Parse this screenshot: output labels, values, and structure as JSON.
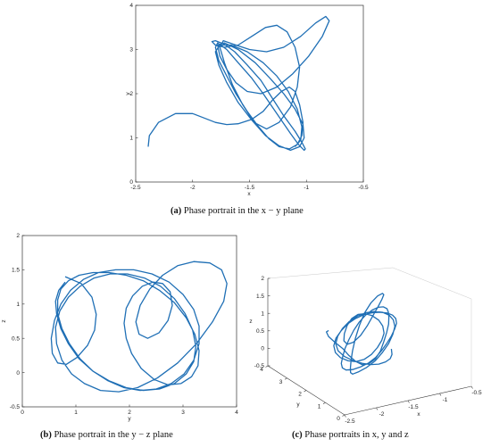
{
  "figure": {
    "captions": {
      "a": {
        "tag": "(a)",
        "text": "Phase portrait in the x − y plane"
      },
      "b": {
        "tag": "(b)",
        "text": "Phase portrait in the y − z plane"
      },
      "c": {
        "tag": "(c)",
        "text": "Phase portraits in x, y and z"
      }
    }
  },
  "chart_data": [
    {
      "id": "a",
      "type": "line",
      "xlabel": "x",
      "ylabel": "y",
      "xlim": [
        -2.5,
        -0.5
      ],
      "ylim": [
        0,
        4
      ],
      "xticks": [
        -2.5,
        -2,
        -1.5,
        -1,
        -0.5
      ],
      "xtick_labels": [
        "-2.5",
        "-2",
        "-1.5",
        "-1",
        "-0.5"
      ],
      "yticks": [
        0,
        1,
        2,
        3,
        4
      ],
      "ytick_labels": [
        "0",
        "1",
        "2",
        "3",
        "4"
      ],
      "grid": false,
      "color": "#1f6fb5",
      "series": [
        {
          "x": [
            -2.39,
            -2.38,
            -2.3,
            -2.15,
            -2.0,
            -1.9,
            -1.8,
            -1.7,
            -1.6,
            -1.48,
            -1.38,
            -1.3,
            -1.22,
            -1.15,
            -1.1,
            -1.06,
            -1.03,
            -1.04,
            -1.08,
            -1.15,
            -1.24,
            -1.33,
            -1.42,
            -1.52,
            -1.62,
            -1.7,
            -1.77,
            -1.8,
            -1.78,
            -1.7,
            -1.6,
            -1.48,
            -1.38,
            -1.3,
            -1.22,
            -1.14,
            -1.07,
            -1.02,
            -1.01,
            -1.04,
            -1.1,
            -1.2,
            -1.3,
            -1.4,
            -1.52,
            -1.63,
            -1.72,
            -1.8,
            -1.83,
            -1.8,
            -1.72,
            -1.6,
            -1.48,
            -1.36,
            -1.26,
            -1.17,
            -1.1,
            -1.06,
            -1.08,
            -1.14,
            -1.24,
            -1.35,
            -1.46,
            -1.56,
            -1.65,
            -1.72,
            -1.76,
            -1.73,
            -1.64,
            -1.5,
            -1.35,
            -1.2,
            -1.05,
            -0.92,
            -0.83,
            -0.8,
            -0.86,
            -0.98,
            -1.12,
            -1.26,
            -1.4,
            -1.52,
            -1.62,
            -1.7,
            -1.76,
            -1.78,
            -1.72,
            -1.6,
            -1.45,
            -1.32,
            -1.2,
            -1.1,
            -1.03,
            -1.02,
            -1.06,
            -1.14,
            -1.24,
            -1.36,
            -1.48,
            -1.6,
            -1.7,
            -1.77,
            -1.8,
            -1.76,
            -1.66,
            -1.52,
            -1.38,
            -1.26,
            -1.16,
            -1.08,
            -1.04,
            -1.05,
            -1.1
          ],
          "y": [
            0.8,
            1.05,
            1.35,
            1.55,
            1.55,
            1.45,
            1.35,
            1.3,
            1.32,
            1.42,
            1.6,
            1.85,
            2.05,
            2.15,
            2.05,
            1.75,
            1.35,
            1.05,
            0.85,
            0.75,
            0.8,
            0.98,
            1.25,
            1.6,
            2.0,
            2.4,
            2.75,
            3.05,
            3.15,
            3.0,
            2.7,
            2.35,
            2.0,
            1.7,
            1.4,
            1.1,
            0.85,
            0.72,
            0.75,
            0.9,
            1.15,
            1.5,
            1.9,
            2.3,
            2.65,
            2.95,
            3.12,
            3.2,
            3.18,
            3.1,
            3.05,
            3.1,
            3.3,
            3.5,
            3.55,
            3.4,
            3.05,
            2.6,
            2.15,
            1.7,
            1.35,
            1.2,
            1.35,
            1.75,
            2.2,
            2.7,
            3.05,
            3.2,
            3.12,
            3.0,
            2.95,
            3.05,
            3.3,
            3.6,
            3.75,
            3.65,
            3.3,
            2.85,
            2.45,
            2.15,
            2.0,
            2.05,
            2.25,
            2.55,
            2.85,
            3.1,
            3.15,
            3.0,
            2.7,
            2.35,
            2.0,
            1.65,
            1.3,
            1.0,
            0.8,
            0.72,
            0.82,
            1.05,
            1.4,
            1.8,
            2.25,
            2.65,
            2.95,
            3.1,
            3.1,
            2.95,
            2.7,
            2.4,
            2.05,
            1.65,
            1.25,
            0.95,
            0.8
          ]
        }
      ]
    },
    {
      "id": "b",
      "type": "line",
      "xlabel": "y",
      "ylabel": "z",
      "xlim": [
        0,
        4
      ],
      "ylim": [
        -0.5,
        2
      ],
      "xticks": [
        0,
        1,
        2,
        3,
        4
      ],
      "xtick_labels": [
        "0",
        "1",
        "2",
        "3",
        "4"
      ],
      "yticks": [
        -0.5,
        0,
        0.5,
        1,
        1.5,
        2
      ],
      "ytick_labels": [
        "-0.5",
        "0",
        "0.5",
        "1",
        "1.5",
        "2"
      ],
      "grid": false,
      "color": "#1f6fb5",
      "series": [
        {
          "x": [
            0.8,
            1.1,
            1.3,
            1.38,
            1.35,
            1.22,
            1.02,
            0.82,
            0.66,
            0.56,
            0.54,
            0.6,
            0.72,
            0.9,
            1.14,
            1.42,
            1.74,
            2.08,
            2.42,
            2.74,
            3.0,
            3.2,
            3.3,
            3.3,
            3.2,
            3.02,
            2.78,
            2.5,
            2.2,
            1.9,
            1.6,
            1.32,
            1.08,
            0.88,
            0.74,
            0.66,
            0.66,
            0.72,
            0.86,
            1.06,
            1.32,
            1.62,
            1.94,
            2.26,
            2.56,
            2.84,
            3.06,
            3.22,
            3.3,
            3.28,
            3.16,
            2.96,
            2.72,
            2.46,
            2.22,
            2.04,
            1.94,
            1.9,
            1.94,
            2.06,
            2.24,
            2.44,
            2.62,
            2.76,
            2.8,
            2.72,
            2.55,
            2.34,
            2.18,
            2.12,
            2.2,
            2.38,
            2.62,
            2.9,
            3.2,
            3.5,
            3.72,
            3.82,
            3.76,
            3.55,
            3.25,
            2.9,
            2.52,
            2.15,
            1.8,
            1.46,
            1.16,
            0.92,
            0.74,
            0.64,
            0.62,
            0.7,
            0.86,
            1.08,
            1.34,
            1.64,
            1.96,
            2.28,
            2.58,
            2.84,
            3.04,
            3.18,
            3.24,
            3.2,
            3.06,
            2.84,
            2.56,
            2.26,
            1.94,
            1.62,
            1.32,
            1.06,
            0.86,
            0.72,
            0.64,
            0.62,
            0.68,
            0.8
          ],
          "y": [
            1.4,
            1.3,
            1.1,
            0.85,
            0.62,
            0.4,
            0.22,
            0.12,
            0.14,
            0.28,
            0.5,
            0.76,
            1.0,
            1.2,
            1.36,
            1.46,
            1.5,
            1.5,
            1.44,
            1.32,
            1.14,
            0.92,
            0.68,
            0.42,
            0.18,
            -0.02,
            -0.16,
            -0.24,
            -0.26,
            -0.22,
            -0.12,
            0.02,
            0.2,
            0.42,
            0.64,
            0.86,
            1.06,
            1.22,
            1.34,
            1.42,
            1.46,
            1.46,
            1.42,
            1.34,
            1.2,
            1.02,
            0.8,
            0.56,
            0.32,
            0.1,
            -0.06,
            -0.16,
            -0.18,
            -0.1,
            0.06,
            0.28,
            0.5,
            0.72,
            0.94,
            1.12,
            1.26,
            1.32,
            1.3,
            1.18,
            0.98,
            0.76,
            0.58,
            0.5,
            0.56,
            0.74,
            0.98,
            1.22,
            1.42,
            1.56,
            1.62,
            1.6,
            1.5,
            1.3,
            1.04,
            0.74,
            0.42,
            0.14,
            -0.08,
            -0.22,
            -0.28,
            -0.26,
            -0.16,
            -0.02,
            0.18,
            0.42,
            0.66,
            0.9,
            1.1,
            1.26,
            1.38,
            1.44,
            1.44,
            1.38,
            1.26,
            1.08,
            0.86,
            0.62,
            0.38,
            0.16,
            -0.02,
            -0.16,
            -0.24,
            -0.26,
            -0.22,
            -0.12,
            0.02,
            0.2,
            0.42,
            0.64,
            0.86,
            1.04,
            1.2,
            1.32
          ]
        }
      ]
    },
    {
      "id": "c",
      "type": "line",
      "projection": "3d",
      "xlabel": "x",
      "ylabel": "y",
      "zlabel": "z",
      "xlim": [
        -2.5,
        -0.5
      ],
      "ylim": [
        0,
        4
      ],
      "zlim": [
        -0.5,
        2
      ],
      "xticks": [
        -2.5,
        -2,
        -1.5,
        -1,
        -0.5
      ],
      "xtick_labels": [
        "-2.5",
        "-2",
        "-1.5",
        "-1",
        "-0.5"
      ],
      "yticks": [
        0,
        1,
        2,
        3,
        4
      ],
      "ytick_labels": [
        "0",
        "1",
        "2",
        "3",
        "4"
      ],
      "zticks": [
        -0.5,
        0,
        0.5,
        1,
        1.5,
        2
      ],
      "ztick_labels": [
        "-0.5",
        "0",
        "0.5",
        "1",
        "1.5",
        "2"
      ],
      "grid": false,
      "color": "#1f6fb5"
    }
  ]
}
